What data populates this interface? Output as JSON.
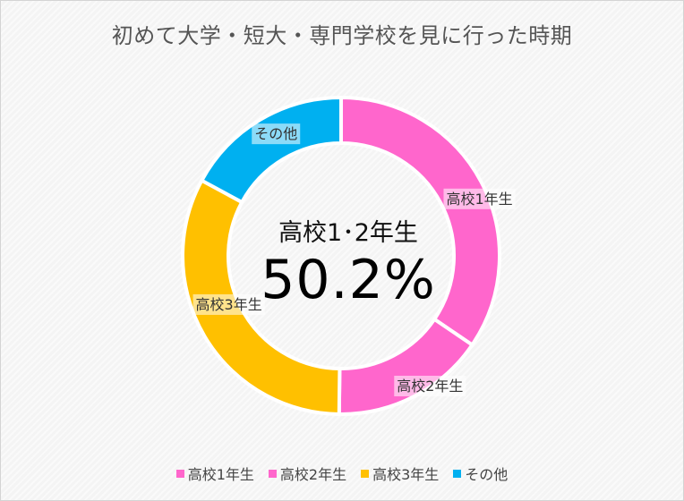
{
  "chart_data": {
    "type": "pie",
    "title": "初めて大学・短大・専門学校を見に行った時期",
    "categories": [
      "高校1年生",
      "高校2年生",
      "高校3年生",
      "その他"
    ],
    "values": [
      34.5,
      15.7,
      32.7,
      17.1
    ],
    "colors": [
      "#ff66cc",
      "#ff66cc",
      "#ffc000",
      "#00b0f0"
    ],
    "center_caption": "高校1･2年生",
    "center_value": "50.2%",
    "legend_position": "bottom"
  }
}
